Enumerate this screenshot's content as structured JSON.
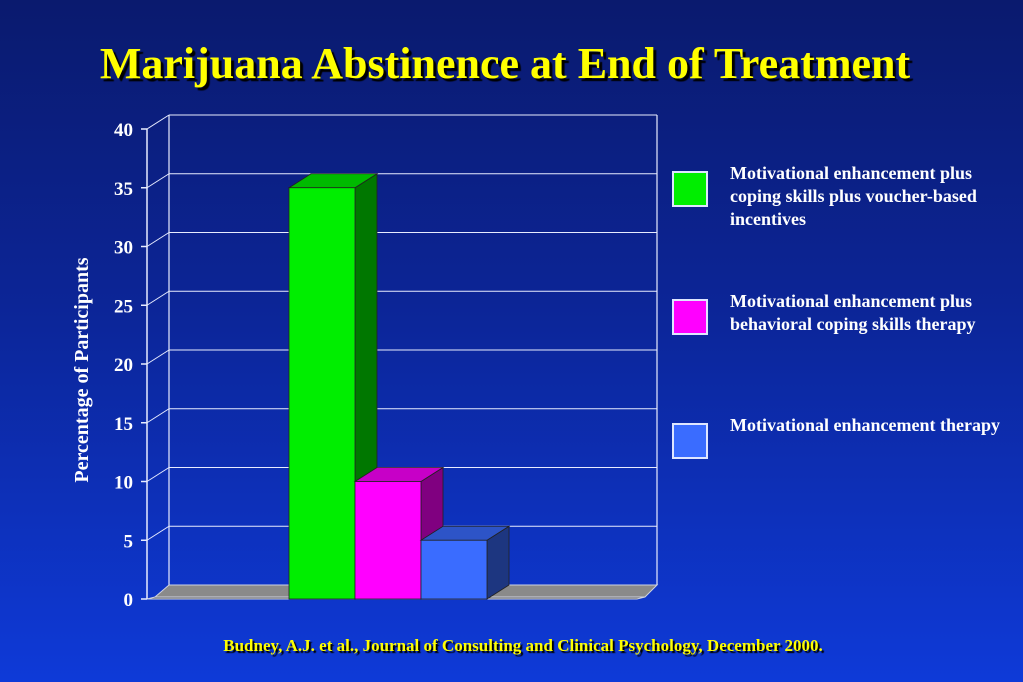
{
  "chart_data": {
    "type": "bar",
    "title": "Marijuana Abstinence at End of Treatment",
    "ylabel": "Percentage of Participants",
    "xlabel": "",
    "ylim": [
      0,
      40
    ],
    "yticks": [
      0,
      5,
      10,
      15,
      20,
      25,
      30,
      35,
      40
    ],
    "categories": [
      ""
    ],
    "series": [
      {
        "name": "Motivational enhancement plus coping skills plus voucher-based incentives",
        "values": [
          35
        ],
        "color": "#00ee00"
      },
      {
        "name": "Motivational enhancement plus behavioral coping skills therapy",
        "values": [
          10
        ],
        "color": "#ff00ff"
      },
      {
        "name": "Motivational enhancement therapy",
        "values": [
          5
        ],
        "color": "#3a6cff"
      }
    ],
    "grid": true,
    "legend": "right"
  },
  "citation": "Budney, A.J. et al.,  Journal of Consulting and Clinical Psychology, December 2000."
}
